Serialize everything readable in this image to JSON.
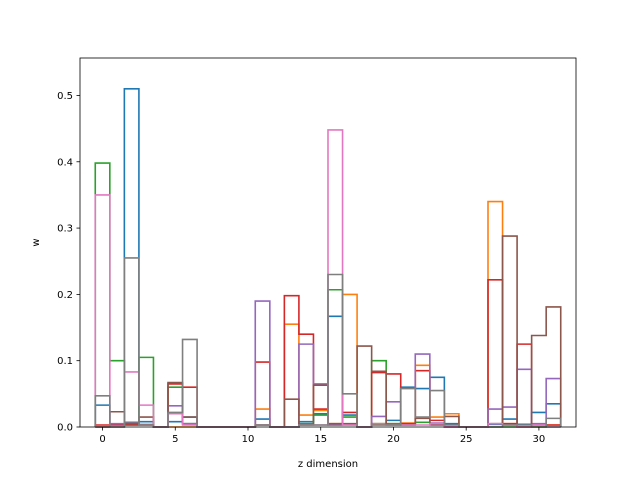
{
  "chart_data": {
    "type": "step-histogram",
    "xlabel": "z dimension",
    "ylabel": "w",
    "xlim": [
      -1.55,
      32.55
    ],
    "ylim": [
      0,
      0.5565
    ],
    "xticks": [
      0,
      5,
      10,
      15,
      20,
      25,
      30
    ],
    "yticks": [
      0.0,
      0.1,
      0.2,
      0.3,
      0.4,
      0.5
    ],
    "x": [
      0,
      1,
      2,
      3,
      4,
      5,
      6,
      7,
      8,
      9,
      10,
      11,
      12,
      13,
      14,
      15,
      16,
      17,
      18,
      19,
      20,
      21,
      22,
      23,
      24,
      25,
      26,
      27,
      28,
      29,
      30,
      31
    ],
    "series": [
      {
        "color": "#1f77b4",
        "values": [
          0.033,
          0.004,
          0.51,
          0.008,
          0.0,
          0.008,
          0.015,
          0.0,
          0.0,
          0.0,
          0.0,
          0.012,
          0.0,
          0.0,
          0.008,
          0.02,
          0.167,
          0.018,
          0.0,
          0.005,
          0.01,
          0.06,
          0.058,
          0.075,
          0.005,
          0.0,
          0.0,
          0.004,
          0.012,
          0.004,
          0.022,
          0.035
        ]
      },
      {
        "color": "#ff7f0e",
        "values": [
          0.0,
          0.0,
          0.003,
          0.004,
          0.0,
          0.0,
          0.0,
          0.0,
          0.0,
          0.0,
          0.0,
          0.027,
          0.0,
          0.155,
          0.018,
          0.025,
          0.005,
          0.2,
          0.0,
          0.005,
          0.005,
          0.006,
          0.093,
          0.015,
          0.02,
          0.0,
          0.0,
          0.34,
          0.005,
          0.0,
          0.0,
          0.003
        ]
      },
      {
        "color": "#2ca02c",
        "values": [
          0.398,
          0.1,
          0.007,
          0.105,
          0.0,
          0.06,
          0.005,
          0.0,
          0.0,
          0.0,
          0.0,
          0.003,
          0.0,
          0.0,
          0.005,
          0.018,
          0.207,
          0.015,
          0.0,
          0.1,
          0.005,
          0.003,
          0.007,
          0.005,
          0.0,
          0.0,
          0.0,
          0.0,
          0.0,
          0.0,
          0.0,
          0.0
        ]
      },
      {
        "color": "#d62728",
        "values": [
          0.003,
          0.003,
          0.003,
          0.003,
          0.0,
          0.065,
          0.06,
          0.0,
          0.0,
          0.0,
          0.0,
          0.098,
          0.0,
          0.198,
          0.14,
          0.027,
          0.003,
          0.022,
          0.0,
          0.082,
          0.08,
          0.005,
          0.085,
          0.01,
          0.0,
          0.0,
          0.0,
          0.222,
          0.005,
          0.125,
          0.003,
          0.003
        ]
      },
      {
        "color": "#9467bd",
        "values": [
          0.0,
          0.005,
          0.006,
          0.003,
          0.0,
          0.032,
          0.005,
          0.0,
          0.0,
          0.0,
          0.0,
          0.19,
          0.0,
          0.0,
          0.125,
          0.065,
          0.003,
          0.003,
          0.0,
          0.016,
          0.038,
          0.003,
          0.11,
          0.006,
          0.0,
          0.0,
          0.0,
          0.027,
          0.03,
          0.087,
          0.005,
          0.073
        ]
      },
      {
        "color": "#8c564b",
        "values": [
          0.0,
          0.023,
          0.005,
          0.015,
          0.0,
          0.067,
          0.015,
          0.0,
          0.0,
          0.0,
          0.0,
          0.003,
          0.0,
          0.042,
          0.003,
          0.063,
          0.005,
          0.005,
          0.122,
          0.084,
          0.003,
          0.003,
          0.013,
          0.003,
          0.016,
          0.0,
          0.0,
          0.005,
          0.288,
          0.0,
          0.138,
          0.181
        ]
      },
      {
        "color": "#e377c2",
        "values": [
          0.35,
          0.0,
          0.083,
          0.033,
          0.0,
          0.02,
          0.003,
          0.0,
          0.0,
          0.0,
          0.0,
          0.003,
          0.0,
          0.0,
          0.003,
          0.003,
          0.448,
          0.003,
          0.0,
          0.003,
          0.003,
          0.003,
          0.003,
          0.005,
          0.0,
          0.0,
          0.0,
          0.005,
          0.003,
          0.0,
          0.003,
          0.0
        ]
      },
      {
        "color": "#7f7f7f",
        "values": [
          0.047,
          0.0,
          0.255,
          0.003,
          0.0,
          0.022,
          0.132,
          0.0,
          0.0,
          0.0,
          0.0,
          0.003,
          0.0,
          0.0,
          0.003,
          0.003,
          0.23,
          0.05,
          0.0,
          0.003,
          0.003,
          0.058,
          0.015,
          0.055,
          0.003,
          0.0,
          0.0,
          0.0,
          0.003,
          0.003,
          0.0,
          0.013
        ]
      }
    ]
  }
}
